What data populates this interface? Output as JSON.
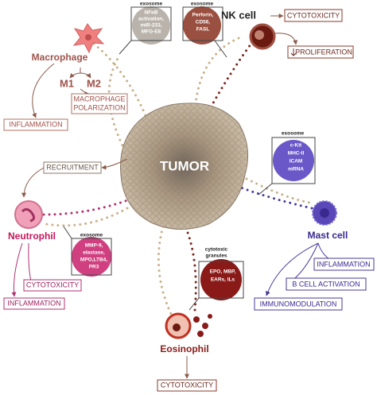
{
  "tumor": {
    "label": "TUMOR"
  },
  "macrophage": {
    "label": "Macrophage",
    "subtypes": [
      "M1",
      "M2"
    ],
    "polarization": [
      "MACROPHAGE",
      "POLARIZATION"
    ],
    "outcomes": [
      "INFLAMMATION"
    ],
    "exosome": {
      "title": "exosome",
      "contents": [
        "NFκB",
        "activation,",
        "miR-233,",
        "MFG-E8"
      ]
    }
  },
  "nk_cell": {
    "label": "NK cell",
    "outcomes": [
      "CYTOTOXICITY",
      "PROLIFERATION"
    ],
    "exosome": {
      "title": "exosome",
      "contents": [
        "Perforin,",
        "CD56,",
        "FASL"
      ]
    }
  },
  "mast_cell": {
    "label": "Mast cell",
    "outcomes": [
      "INFLAMMATION",
      "B CELL ACTIVATION",
      "IMMUNOMODULATION"
    ],
    "exosome": {
      "title": "exosome",
      "contents": [
        "c-Kit",
        "MHC-II",
        "ICAM",
        "mRNA"
      ]
    }
  },
  "neutrophil": {
    "label": "Neutrophil",
    "outcomes": [
      "RECRUITMENT",
      "CYTOTOXICITY",
      "INFLAMMATION"
    ],
    "exosome": {
      "title": "exosome",
      "contents": [
        "MMP-9,",
        "elastase,",
        "MPO,LTB4,",
        "PR3"
      ]
    }
  },
  "eosinophil": {
    "label": "Eosinophil",
    "outcomes": [
      "CYTOTOXICITY"
    ],
    "granules": {
      "title": [
        "cytotoxic",
        "granules"
      ],
      "contents": [
        "EPO, MBP,",
        "EARs, ILs"
      ]
    }
  }
}
